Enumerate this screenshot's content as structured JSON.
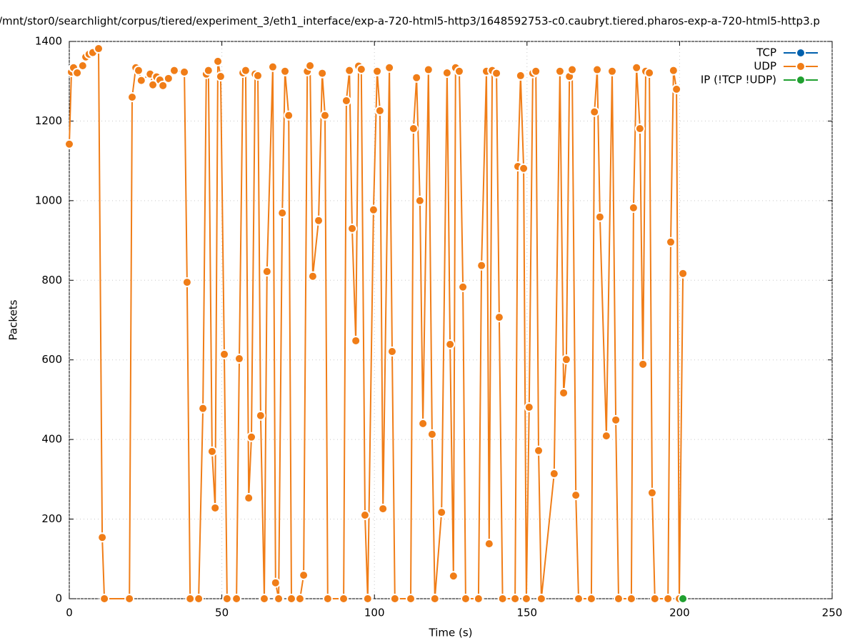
{
  "chart_data": {
    "type": "line",
    "title": "/mnt/stor0/searchlight/corpus/tiered/experiment_3/eth1_interface/exp-a-720-html5-http3/1648592753-c0.caubryt.tiered.pharos-exp-a-720-html5-http3.p",
    "xlabel": "Time (s)",
    "ylabel": "Packets",
    "xlim": [
      0,
      250
    ],
    "xticks": [
      0,
      50,
      100,
      150,
      200,
      250
    ],
    "ylim": [
      0,
      1400
    ],
    "yticks": [
      0,
      200,
      400,
      600,
      800,
      1000,
      1200,
      1400
    ],
    "grid": true,
    "legend": "upper right",
    "series": [
      {
        "name": "TCP",
        "color": "#0060ad",
        "x": [],
        "values": []
      },
      {
        "name": "UDP",
        "color": "#f07d17",
        "x": [
          0,
          0.7,
          1.4,
          2.6,
          4.4,
          5.4,
          6.5,
          7.7,
          9.6,
          10.8,
          11.5,
          19.7,
          20.6,
          21.8,
          22.7,
          23.6,
          26.5,
          27.4,
          28.6,
          29.7,
          30.7,
          32.5,
          34.4,
          37.7,
          38.6,
          39.6,
          42.4,
          43.8,
          44.9,
          45.6,
          46.8,
          47.8,
          48.7,
          49.6,
          50.8,
          51.7,
          54.8,
          55.7,
          56.9,
          57.8,
          58.8,
          59.7,
          60.9,
          61.8,
          62.7,
          63.9,
          64.8,
          66.7,
          67.6,
          68.6,
          69.8,
          70.7,
          71.9,
          72.8,
          75.6,
          76.8,
          78.0,
          78.9,
          79.8,
          81.7,
          82.9,
          83.8,
          84.7,
          89.9,
          90.8,
          91.8,
          92.7,
          93.9,
          94.8,
          95.7,
          96.9,
          97.8,
          99.7,
          100.9,
          101.8,
          102.8,
          104.9,
          105.8,
          106.7,
          111.9,
          112.8,
          113.8,
          114.9,
          115.9,
          117.7,
          118.9,
          119.8,
          122.0,
          123.8,
          124.8,
          125.9,
          126.6,
          127.8,
          129.0,
          129.9,
          134.1,
          135.1,
          136.7,
          137.6,
          138.6,
          140.0,
          140.9,
          142.0,
          146.1,
          147.0,
          147.9,
          148.9,
          149.8,
          150.7,
          151.9,
          152.9,
          153.8,
          154.7,
          158.9,
          160.8,
          162.0,
          162.9,
          163.9,
          164.8,
          166.0,
          166.9,
          171.1,
          172.1,
          173.0,
          173.9,
          176.0,
          177.9,
          179.1,
          180.0,
          184.2,
          184.9,
          185.9,
          187.0,
          188.0,
          188.9,
          190.1,
          191.0,
          191.9,
          196.2,
          197.1,
          198.0,
          199.0,
          199.9,
          201.1
        ],
        "values": [
          1142,
          1323,
          1334,
          1321,
          1339,
          1361,
          1368,
          1372,
          1382,
          154,
          0,
          0,
          1260,
          1334,
          1327,
          1302,
          1318,
          1291,
          1311,
          1303,
          1289,
          1307,
          1327,
          1323,
          795,
          0,
          0,
          478,
          1318,
          1327,
          370,
          228,
          1350,
          1312,
          614,
          0,
          0,
          603,
          1321,
          1327,
          253,
          406,
          1318,
          1314,
          460,
          0,
          822,
          1336,
          40,
          0,
          969,
          1325,
          1214,
          0,
          0,
          59,
          1325,
          1339,
          810,
          950,
          1320,
          1214,
          0,
          0,
          1251,
          1327,
          930,
          648,
          1338,
          1330,
          210,
          0,
          977,
          1325,
          1226,
          226,
          1334,
          621,
          0,
          0,
          1181,
          1309,
          1000,
          440,
          1329,
          413,
          0,
          217,
          1321,
          639,
          57,
          1334,
          1325,
          783,
          0,
          0,
          837,
          1325,
          138,
          1327,
          1320,
          707,
          0,
          0,
          1086,
          1314,
          1081,
          0,
          481,
          1320,
          1325,
          372,
          0,
          314,
          1325,
          517,
          601,
          1312,
          1329,
          260,
          0,
          0,
          1223,
          1329,
          959,
          409,
          1325,
          449,
          0,
          0,
          982,
          1334,
          1181,
          589,
          1325,
          1321,
          266,
          0,
          0,
          896,
          1327,
          1280,
          0,
          817
        ]
      },
      {
        "name": "IP (!TCP  !UDP)",
        "color": "#20a030",
        "x": [
          201.1
        ],
        "values": [
          0
        ]
      }
    ]
  }
}
